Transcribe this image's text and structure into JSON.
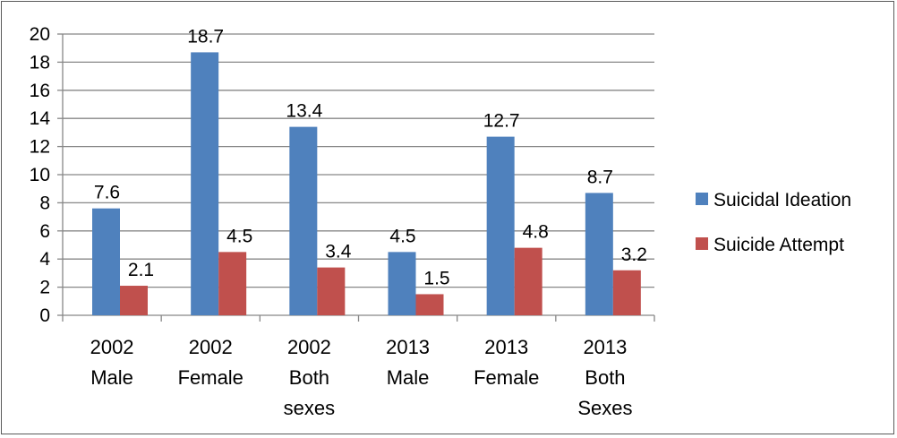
{
  "chart_data": {
    "type": "bar",
    "categories": [
      [
        "2002",
        "Male"
      ],
      [
        "2002",
        "Female"
      ],
      [
        "2002",
        "Both",
        "sexes"
      ],
      [
        "2013",
        "Male"
      ],
      [
        "2013",
        "Female"
      ],
      [
        "2013",
        "Both",
        "Sexes"
      ]
    ],
    "series": [
      {
        "name": "Suicidal Ideation",
        "values": [
          7.6,
          18.7,
          13.4,
          4.5,
          12.7,
          8.7
        ],
        "color": "#4f81bd"
      },
      {
        "name": "Suicide Attempt",
        "values": [
          2.1,
          4.5,
          3.4,
          1.5,
          4.8,
          3.2
        ],
        "color": "#c0504d"
      }
    ],
    "title": "",
    "xlabel": "",
    "ylabel": "",
    "ylim": [
      0,
      20
    ],
    "yticks": [
      0,
      2,
      4,
      6,
      8,
      10,
      12,
      14,
      16,
      18,
      20
    ],
    "grid": true,
    "legend": "right",
    "data_labels": true
  }
}
